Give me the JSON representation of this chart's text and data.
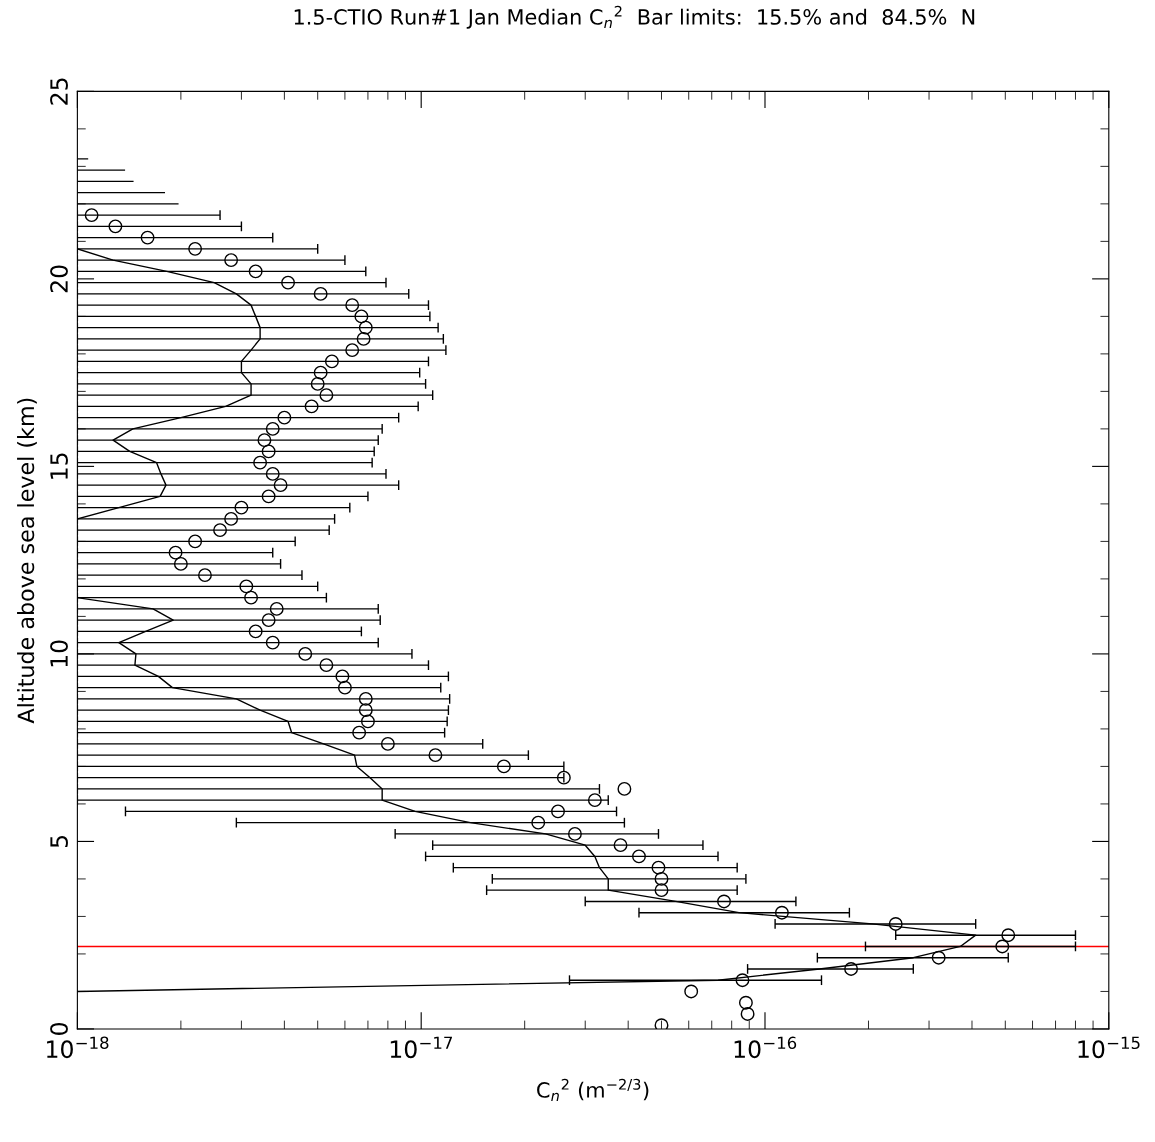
{
  "chart_data": {
    "type": "scatter",
    "title": "1.5-CTIO Run#1 Jan Median C$_{n}$$^{2}$  Bar limits:  15.5% and  84.5%  N",
    "xlabel": "C$_{n}$$^{2}$ (m$^{−2/3}$)",
    "ylabel": "Altitude above sea level (km)",
    "log": "x",
    "grid": false,
    "legend": false,
    "xlim": [
      1e-18,
      1e-15
    ],
    "xticks": [
      {
        "value": 1e-18,
        "label": "10$^{−18}$"
      },
      {
        "value": 1e-17,
        "label": "10$^{−17}$"
      },
      {
        "value": 1e-16,
        "label": "10$^{−16}$"
      },
      {
        "value": 1e-15,
        "label": "10$^{−15}$"
      }
    ],
    "ylim": [
      0,
      25
    ],
    "yticks": [
      0,
      5,
      10,
      15,
      20,
      25
    ],
    "ref_lines": [
      {
        "axis": "y",
        "value": 2.2,
        "color": "#ff0000",
        "line_style": "solid"
      }
    ],
    "series": [
      {
        "color": "#000000",
        "marker": "circle",
        "x": [
          5e-17,
          8.9e-17,
          8.8e-17,
          6.1e-17,
          8.6e-17,
          1.78e-16,
          3.2e-16,
          4.9e-16,
          5.1e-16,
          2.4e-16,
          1.12e-16,
          7.6e-17,
          5e-17,
          5e-17,
          4.9e-17,
          4.3e-17,
          3.8e-17,
          2.8e-17,
          2.19e-17,
          2.5e-17,
          3.2e-17,
          3.9e-17,
          2.6e-17,
          1.74e-17,
          1.1e-17,
          8e-18,
          6.6e-18,
          7e-18,
          6.9e-18,
          6.9e-18,
          6e-18,
          5.9e-18,
          5.3e-18,
          4.6e-18,
          3.7e-18,
          3.3e-18,
          3.6e-18,
          3.8e-18,
          3.2e-18,
          3.1e-18,
          2.35e-18,
          2e-18,
          1.93e-18,
          2.2e-18,
          2.6e-18,
          2.8e-18,
          3e-18,
          3.6e-18,
          3.9e-18,
          3.7e-18,
          3.4e-18,
          3.6e-18,
          3.5e-18,
          3.7e-18,
          4e-18,
          4.8e-18,
          5.3e-18,
          5e-18,
          5.1e-18,
          5.5e-18,
          6.3e-18,
          6.8e-18,
          6.9e-18,
          6.7e-18,
          6.3e-18,
          5.1e-18,
          4.1e-18,
          3.3e-18,
          2.8e-18,
          2.2e-18,
          1.6e-18,
          1.29e-18,
          1.1e-18
        ],
        "values": [
          0.1,
          0.4,
          0.7,
          1.0,
          1.3,
          1.6,
          1.9,
          2.2,
          2.5,
          2.8,
          3.1,
          3.4,
          3.7,
          4.0,
          4.3,
          4.6,
          4.9,
          5.2,
          5.5,
          5.8,
          6.1,
          6.4,
          6.7,
          7.0,
          7.3,
          7.6,
          7.9,
          8.2,
          8.5,
          8.8,
          9.1,
          9.4,
          9.7,
          10.0,
          10.3,
          10.6,
          10.9,
          11.2,
          11.5,
          11.8,
          12.1,
          12.4,
          12.7,
          13.0,
          13.3,
          13.6,
          13.9,
          14.2,
          14.5,
          14.8,
          15.1,
          15.4,
          15.7,
          16.0,
          16.3,
          16.6,
          16.9,
          17.2,
          17.5,
          17.8,
          18.1,
          18.4,
          18.7,
          19.0,
          19.3,
          19.6,
          19.9,
          20.2,
          20.5,
          20.8,
          21.1,
          21.4,
          21.7
        ],
        "xerrors": [
          null,
          null,
          null,
          null,
          [
            2.7e-17,
            1.46e-16
          ],
          [
            8.9e-17,
            2.7e-16
          ],
          [
            1.42e-16,
            5.1e-16
          ],
          [
            1.96e-16,
            8e-16
          ],
          [
            2.4e-16,
            8e-16
          ],
          [
            1.07e-16,
            4.1e-16
          ],
          [
            4.3e-17,
            1.76e-16
          ],
          [
            3e-17,
            1.23e-16
          ],
          [
            1.55e-17,
            8.3e-17
          ],
          [
            1.61e-17,
            8.8e-17
          ],
          [
            1.24e-17,
            8.3e-17
          ],
          [
            1.03e-17,
            7.3e-17
          ],
          [
            1.08e-17,
            6.6e-17
          ],
          [
            8.4e-18,
            4.9e-17
          ],
          [
            2.9e-18,
            3.9e-17
          ],
          [
            1.38e-18,
            3.7e-17
          ],
          [
            1e-18,
            3.5e-17
          ],
          [
            1e-18,
            3.3e-17
          ],
          [
            1e-18,
            2.6e-17
          ],
          [
            1e-18,
            2.6e-17
          ],
          [
            1e-18,
            2.05e-17
          ],
          [
            1e-18,
            1.51e-17
          ],
          [
            1e-18,
            1.17e-17
          ],
          [
            1e-18,
            1.19e-17
          ],
          [
            1e-18,
            1.2e-17
          ],
          [
            1e-18,
            1.21e-17
          ],
          [
            1e-18,
            1.14e-17
          ],
          [
            1e-18,
            1.2e-17
          ],
          [
            1e-18,
            1.05e-17
          ],
          [
            1e-18,
            9.4e-18
          ],
          [
            1e-18,
            7.5e-18
          ],
          [
            1e-18,
            6.7e-18
          ],
          [
            1e-18,
            7.6e-18
          ],
          [
            1e-18,
            7.5e-18
          ],
          [
            1e-18,
            5.3e-18
          ],
          [
            1e-18,
            5e-18
          ],
          [
            1e-18,
            4.5e-18
          ],
          [
            1e-18,
            3.9e-18
          ],
          [
            1e-18,
            3.7e-18
          ],
          [
            1e-18,
            4.3e-18
          ],
          [
            1e-18,
            5.4e-18
          ],
          [
            1e-18,
            5.6e-18
          ],
          [
            1e-18,
            6.2e-18
          ],
          [
            1e-18,
            7e-18
          ],
          [
            1e-18,
            8.6e-18
          ],
          [
            1e-18,
            7.9e-18
          ],
          [
            1e-18,
            7.2e-18
          ],
          [
            1e-18,
            7.3e-18
          ],
          [
            1e-18,
            7.5e-18
          ],
          [
            1e-18,
            7.7e-18
          ],
          [
            1e-18,
            8.6e-18
          ],
          [
            1e-18,
            9.8e-18
          ],
          [
            1e-18,
            1.08e-17
          ],
          [
            1e-18,
            1.03e-17
          ],
          [
            1e-18,
            9.9e-18
          ],
          [
            1e-18,
            1.05e-17
          ],
          [
            1e-18,
            1.18e-17
          ],
          [
            1e-18,
            1.16e-17
          ],
          [
            1e-18,
            1.12e-17
          ],
          [
            1e-18,
            1.06e-17
          ],
          [
            1e-18,
            1.05e-17
          ],
          [
            1e-18,
            9.2e-18
          ],
          [
            1e-18,
            7.9e-18
          ],
          [
            1e-18,
            6.9e-18
          ],
          [
            1e-18,
            6e-18
          ],
          [
            1e-18,
            5e-18
          ],
          [
            1e-18,
            3.7e-18
          ],
          [
            1e-18,
            3e-18
          ],
          [
            1e-18,
            2.6e-18
          ]
        ]
      },
      {
        "type": "line",
        "color": "#000000",
        "marker": "none",
        "line_style": "solid",
        "x": [
          1e-18,
          7.3e-17,
          1.44e-16,
          2.7e-16,
          3.7e-16,
          4.1e-16,
          2.05e-16,
          8.4e-17,
          5.5e-17,
          3.5e-17,
          3.5e-17,
          3.3e-17,
          3.2e-17,
          3e-17,
          2.3e-17,
          1.39e-17,
          9.6e-18,
          7.7e-18,
          7.7e-18,
          7.1e-18,
          6.5e-18,
          6.4e-18,
          5.2e-18,
          4.2e-18,
          4.1e-18,
          3.4e-18,
          2.9e-18,
          1.89e-18,
          1.72e-18,
          1.47e-18,
          1.48e-18,
          1.32e-18,
          1.58e-18,
          1.9e-18,
          1.66e-18,
          1e-18
        ],
        "values": [
          1.0,
          1.3,
          1.6,
          1.9,
          2.2,
          2.5,
          2.8,
          3.1,
          3.4,
          3.7,
          4.0,
          4.3,
          4.6,
          4.9,
          5.2,
          5.5,
          5.8,
          6.1,
          6.4,
          6.7,
          7.0,
          7.3,
          7.6,
          7.9,
          8.2,
          8.5,
          8.8,
          9.1,
          9.4,
          9.7,
          10.0,
          10.3,
          10.6,
          10.9,
          11.2,
          11.5
        ]
      },
      {
        "type": "line",
        "color": "#000000",
        "marker": "none",
        "line_style": "solid",
        "x": [
          1e-18,
          1.32e-18,
          1.74e-18,
          1.81e-18,
          1.75e-18,
          1.7e-18,
          1.42e-18,
          1.27e-18,
          1.45e-18,
          2e-18,
          2.7e-18,
          3.2e-18,
          3.2e-18,
          3e-18,
          3e-18,
          3.2e-18,
          3.4e-18,
          3.4e-18,
          3.3e-18,
          3.2e-18,
          2.9e-18,
          2.5e-18,
          1.82e-18,
          1.27e-18,
          1e-18
        ],
        "values": [
          13.6,
          13.9,
          14.2,
          14.5,
          14.8,
          15.1,
          15.4,
          15.7,
          16.0,
          16.3,
          16.6,
          16.9,
          17.2,
          17.5,
          17.8,
          18.1,
          18.4,
          18.7,
          19.0,
          19.3,
          19.6,
          19.9,
          20.2,
          20.5,
          20.8
        ]
      },
      {
        "type": "line",
        "color": "#000000",
        "marker": "none",
        "line_style": "solid",
        "x": [
          1e-18,
          1.96e-18
        ],
        "values": [
          22.0,
          22.0
        ]
      },
      {
        "type": "line",
        "color": "#000000",
        "marker": "none",
        "line_style": "solid",
        "x": [
          1e-18,
          1.79e-18
        ],
        "values": [
          22.3,
          22.3
        ]
      },
      {
        "type": "line",
        "color": "#000000",
        "marker": "none",
        "line_style": "solid",
        "x": [
          1e-18,
          1.45e-18
        ],
        "values": [
          22.6,
          22.6
        ]
      },
      {
        "type": "line",
        "color": "#000000",
        "marker": "none",
        "line_style": "solid",
        "x": [
          1e-18,
          1.37e-18
        ],
        "values": [
          22.9,
          22.9
        ]
      },
      {
        "type": "line",
        "color": "#000000",
        "marker": "none",
        "line_style": "solid",
        "x": [
          1e-18,
          1.07e-18
        ],
        "values": [
          23.2,
          23.2
        ]
      }
    ]
  }
}
